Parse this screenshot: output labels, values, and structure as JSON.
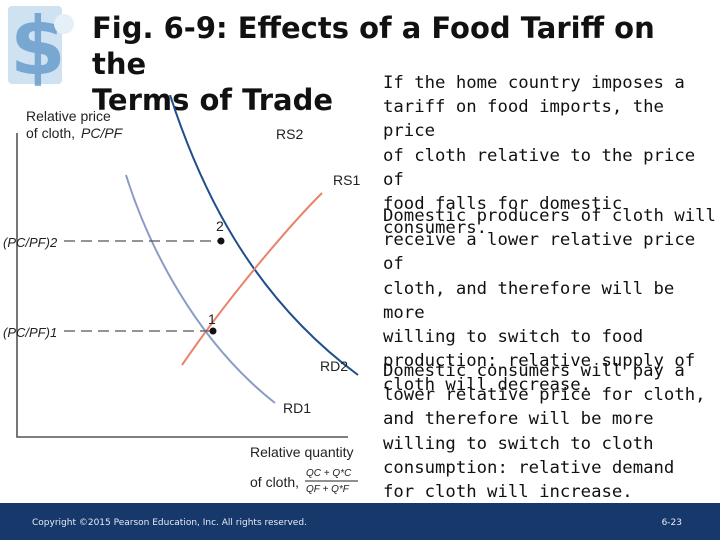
{
  "slide": {
    "title_line1": "Fig. 6-9: Effects of a Food Tariff on the",
    "title_line2": "Terms of Trade",
    "paragraphs": [
      "If the home country imposes a\ntariff on food imports, the price\nof cloth relative to the price of\nfood falls for domestic\nconsumers.",
      "Domestic producers of cloth will\nreceive a lower relative price of\ncloth, and therefore will be more\nwilling to switch to food\nproduction: relative supply of\ncloth will decrease.",
      "Domestic consumers will pay a\nlower relative price for cloth,\nand therefore will be more\nwilling to switch to cloth\nconsumption: relative demand\nfor cloth will increase."
    ],
    "copyright": "Copyright ©2015 Pearson Education, Inc. All rights reserved.",
    "page_number": "6-23"
  },
  "diagram": {
    "y_axis_label_line1": "Relative price",
    "y_axis_label_line2": "of cloth,",
    "y_axis_label_ratio": "PC/PF",
    "x_axis_label_line1": "Relative quantity",
    "x_axis_label_line2": "of cloth,",
    "x_fraction_top": "QC + Q*C",
    "x_fraction_bottom": "QF + Q*F",
    "curves": {
      "rs2": "RS2",
      "rs1": "RS1",
      "rd2": "RD2",
      "rd1": "RD1"
    },
    "points": {
      "p2": "2",
      "p1": "1"
    },
    "price_label_2": "(PC/PF)2",
    "price_label_1": "(PC/PF)1",
    "colors": {
      "rs2": "#1f4e8c",
      "rs1": "#e8836a",
      "rd2": "#1f4e8c",
      "rd1": "#8a9bc4",
      "axis": "#555555",
      "footer": "#16386a"
    }
  }
}
